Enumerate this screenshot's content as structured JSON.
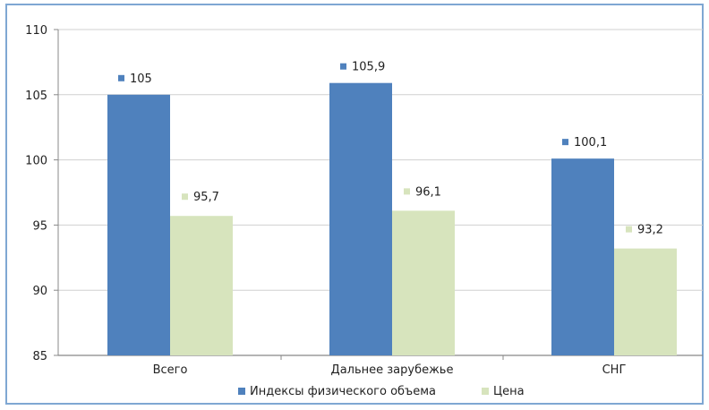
{
  "chart_data": {
    "type": "bar",
    "categories": [
      "Всего",
      "Дальнее зарубежье",
      "СНГ"
    ],
    "series": [
      {
        "name": "Индексы физического объема",
        "values": [
          105,
          105.9,
          100.1
        ],
        "labels": [
          "105",
          "105,9",
          "100,1"
        ],
        "color": "#4f81bd"
      },
      {
        "name": "Цена",
        "values": [
          95.7,
          96.1,
          93.2
        ],
        "labels": [
          "95,7",
          "96,1",
          "93,2"
        ],
        "color": "#d7e4bd"
      }
    ],
    "ylim": [
      85,
      110
    ],
    "yticks": [
      85,
      90,
      95,
      100,
      105,
      110
    ],
    "grid": true,
    "legend_position": "bottom"
  }
}
